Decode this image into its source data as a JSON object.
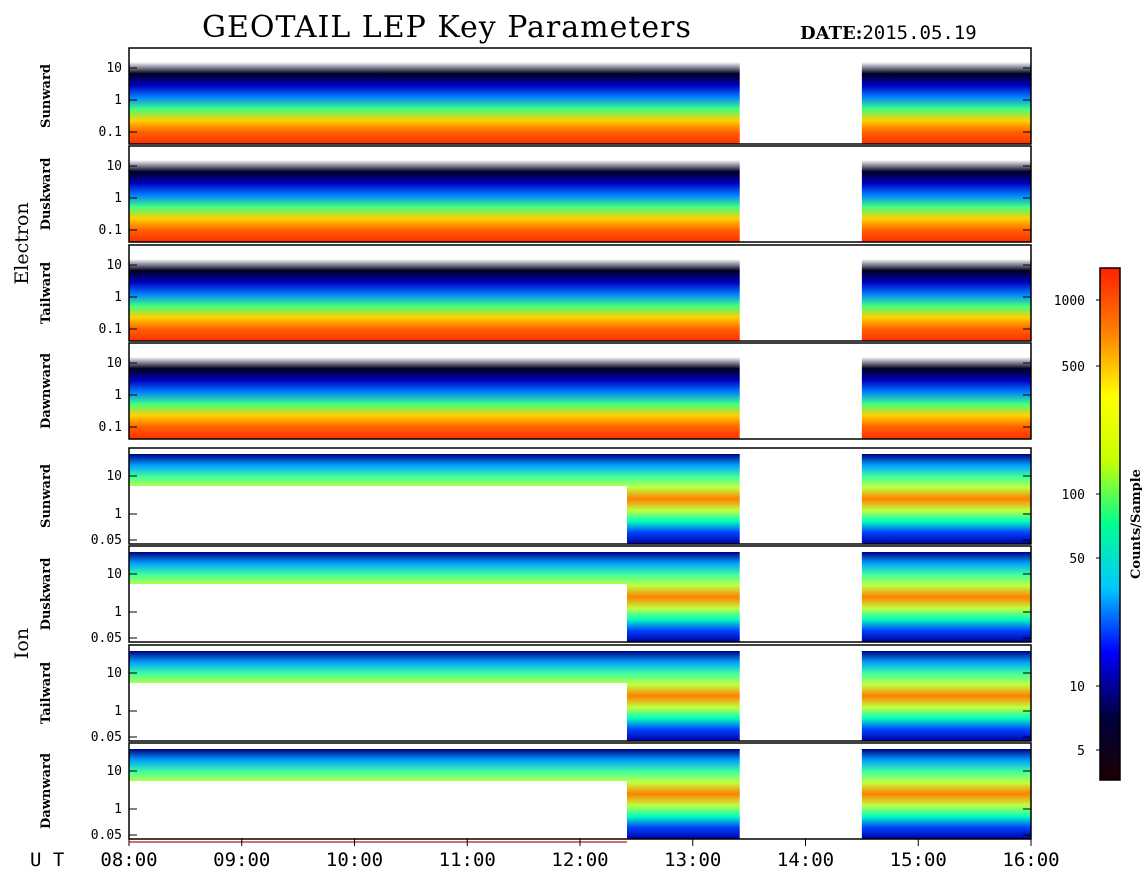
{
  "header": {
    "title": "GEOTAIL LEP Key Parameters",
    "date_label": "DATE:",
    "date_value": "2015.05.19"
  },
  "chart_data": {
    "type": "heatmap",
    "title": "GEOTAIL LEP Key Parameters",
    "x_axis": {
      "label": "U T",
      "ticks": [
        "08:00",
        "09:00",
        "10:00",
        "11:00",
        "12:00",
        "13:00",
        "14:00",
        "15:00",
        "16:00"
      ],
      "range": [
        "08:00",
        "16:00"
      ]
    },
    "groups": [
      {
        "name": "Electron",
        "panels": [
          "Sunward",
          "Duskward",
          "Tailward",
          "Dawnward"
        ],
        "y_ticks": [
          "10",
          "1",
          "0.1"
        ],
        "log_scale": true
      },
      {
        "name": "Ion",
        "panels": [
          "Sunward",
          "Duskward",
          "Tailward",
          "Dawnward"
        ],
        "y_ticks": [
          "10",
          "1",
          "0.05"
        ],
        "log_scale": true
      }
    ],
    "data_gaps": [
      [
        "13:25",
        "14:30"
      ]
    ],
    "colorbar": {
      "label": "Counts/Sample",
      "ticks": [
        "1000",
        "500",
        "100",
        "50",
        "10",
        "5"
      ],
      "log_scale": true,
      "colormap": [
        "#1a0000",
        "#000040",
        "#0000ff",
        "#00c8ff",
        "#00ff90",
        "#c8ff00",
        "#ffff00",
        "#ff8000",
        "#ff2000"
      ]
    }
  }
}
